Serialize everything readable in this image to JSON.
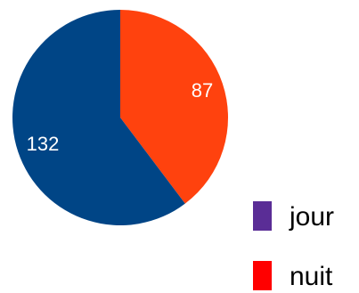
{
  "chart_data": {
    "type": "pie",
    "slices": [
      {
        "label": "jour",
        "value": 132,
        "value_label": "132",
        "color": "#004586"
      },
      {
        "label": "nuit",
        "value": 87,
        "value_label": "87",
        "color": "#ff420e"
      }
    ],
    "legend": {
      "placement": "bottom-right",
      "entries": [
        {
          "label": "jour",
          "color": "#5a2d96"
        },
        {
          "label": "nuit",
          "color": "#ff0000"
        }
      ]
    }
  }
}
